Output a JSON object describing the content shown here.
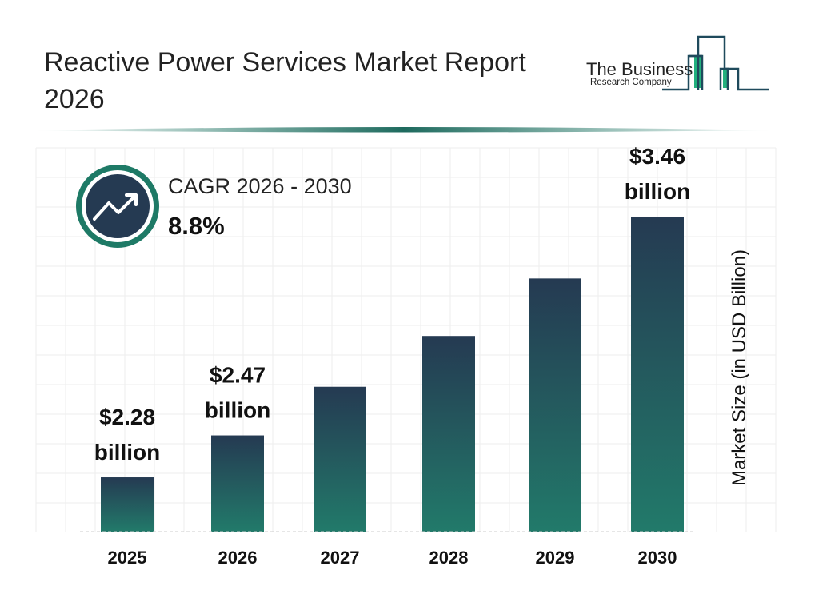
{
  "title": "Reactive Power Services Market Report 2026",
  "logo": {
    "line1": "The Business",
    "line2": "Research Company"
  },
  "cagr": {
    "label": "CAGR 2026 - 2030",
    "value": "8.8%",
    "icon": "trending-up-icon"
  },
  "colors": {
    "bar_top": "#253a52",
    "bar_bottom": "#227a6a",
    "accent": "#1e7a66",
    "logo_green": "#22b07d"
  },
  "chart_data": {
    "type": "bar",
    "categories": [
      "2025",
      "2026",
      "2027",
      "2028",
      "2029",
      "2030"
    ],
    "values": [
      2.28,
      2.47,
      2.69,
      2.92,
      3.18,
      3.46
    ],
    "data_labels": [
      {
        "index": 0,
        "line1": "$2.28",
        "line2": "billion"
      },
      {
        "index": 1,
        "line1": "$2.47",
        "line2": "billion"
      },
      {
        "index": 5,
        "line1": "$3.46",
        "line2": "billion"
      }
    ],
    "ylabel": "Market Size (in USD Billion)",
    "xlabel": "",
    "grid": true
  }
}
